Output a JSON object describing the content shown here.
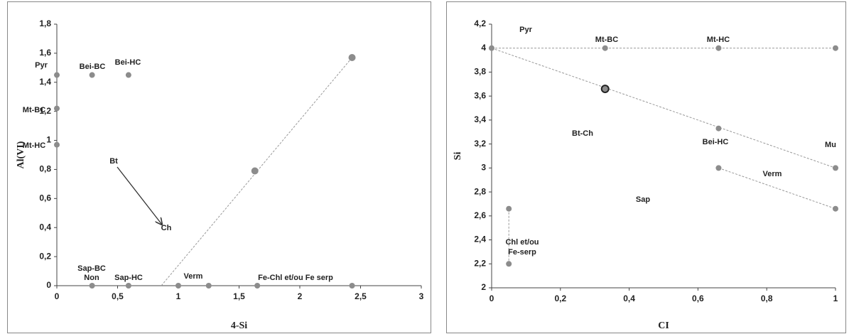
{
  "chart_data": [
    {
      "type": "scatter",
      "xlabel": "4-Si",
      "ylabel": "Al(VI)",
      "xlim": [
        0,
        3
      ],
      "ylim": [
        0,
        1.8
      ],
      "xticks": [
        0,
        {
          "value": 0.5,
          "label": "0,5"
        },
        1,
        {
          "value": 1.5,
          "label": "1,5"
        },
        2,
        {
          "value": 2.5,
          "label": "2,5"
        },
        3
      ],
      "yticks": [
        0,
        {
          "value": 0.2,
          "label": "0,2"
        },
        {
          "value": 0.4,
          "label": "0,4"
        },
        {
          "value": 0.6,
          "label": "0,6"
        },
        {
          "value": 0.8,
          "label": "0,8"
        },
        1,
        {
          "value": 1.2,
          "label": "1,2"
        },
        {
          "value": 1.4,
          "label": "1,4"
        },
        {
          "value": 1.6,
          "label": "1,6"
        },
        {
          "value": 1.8,
          "label": "1,8"
        }
      ],
      "series": [
        {
          "color": "#8c8c8c",
          "x": [
            0,
            0.29,
            0.59,
            0,
            0,
            0.29,
            0.59,
            1,
            1.25,
            1.65,
            2.43
          ],
          "values": [
            1.45,
            1.45,
            1.45,
            1.22,
            0.97,
            0,
            0,
            0,
            0,
            0,
            0
          ]
        },
        {
          "color": "#8c8c8c",
          "x": [
            1.63,
            2.43
          ],
          "values": [
            0.79,
            1.57
          ]
        }
      ],
      "lines": [
        {
          "x": [
            0.86,
            2.43
          ],
          "values": [
            0,
            1.57
          ]
        }
      ],
      "annotations": [
        "Pyr",
        "Bei-BC",
        "Bei-HC",
        "Mt-BC",
        "Mt-HC",
        "Bt",
        "Ch",
        "Sap-BC",
        "Non",
        "Sap-HC",
        "Verm",
        "Fe-Chl et/ou Fe serp"
      ]
    },
    {
      "type": "scatter",
      "xlabel": "CI",
      "ylabel": "Si",
      "xlim": [
        0,
        1
      ],
      "ylim": [
        2,
        4.2
      ],
      "xticks": [
        0,
        {
          "value": 0.2,
          "label": "0,2"
        },
        {
          "value": 0.4,
          "label": "0,4"
        },
        {
          "value": 0.6,
          "label": "0,6"
        },
        {
          "value": 0.8,
          "label": "0,8"
        },
        1
      ],
      "yticks": [
        2,
        {
          "value": 2.2,
          "label": "2,2"
        },
        {
          "value": 2.4,
          "label": "2,4"
        },
        {
          "value": 2.6,
          "label": "2,6"
        },
        {
          "value": 2.8,
          "label": "2,8"
        },
        3,
        {
          "value": 3.2,
          "label": "3,2"
        },
        {
          "value": 3.4,
          "label": "3,4"
        },
        {
          "value": 3.6,
          "label": "3,6"
        },
        {
          "value": 3.8,
          "label": "3,8"
        },
        4,
        {
          "value": 4.2,
          "label": "4,2"
        }
      ],
      "series": [
        {
          "color": "#8c8c8c",
          "x": [
            0,
            0.33,
            0.66,
            1,
            0.66,
            1,
            0.66,
            1,
            0.05,
            0.05
          ],
          "values": [
            4,
            4,
            4,
            4,
            3.33,
            3,
            3,
            2.66,
            2.66,
            2.2
          ]
        },
        {
          "color": "#8c8c8c",
          "edgecolor": "#222222",
          "x": [
            0.33
          ],
          "values": [
            3.66
          ]
        }
      ],
      "lines": [
        {
          "x": [
            0,
            1
          ],
          "values": [
            4,
            4
          ]
        },
        {
          "x": [
            0,
            1
          ],
          "values": [
            4,
            3
          ]
        },
        {
          "x": [
            0.66,
            1
          ],
          "values": [
            3,
            2.66
          ]
        },
        {
          "x": [
            0.05,
            0.05
          ],
          "values": [
            2.66,
            2.2
          ]
        }
      ],
      "annotations": [
        "Pyr",
        "Mt-BC",
        "Mt-HC",
        "Bt-Ch",
        "Bei-HC",
        "Mu",
        "Verm",
        "Sap",
        "Chl et/ou",
        "Fe-serp"
      ]
    }
  ]
}
